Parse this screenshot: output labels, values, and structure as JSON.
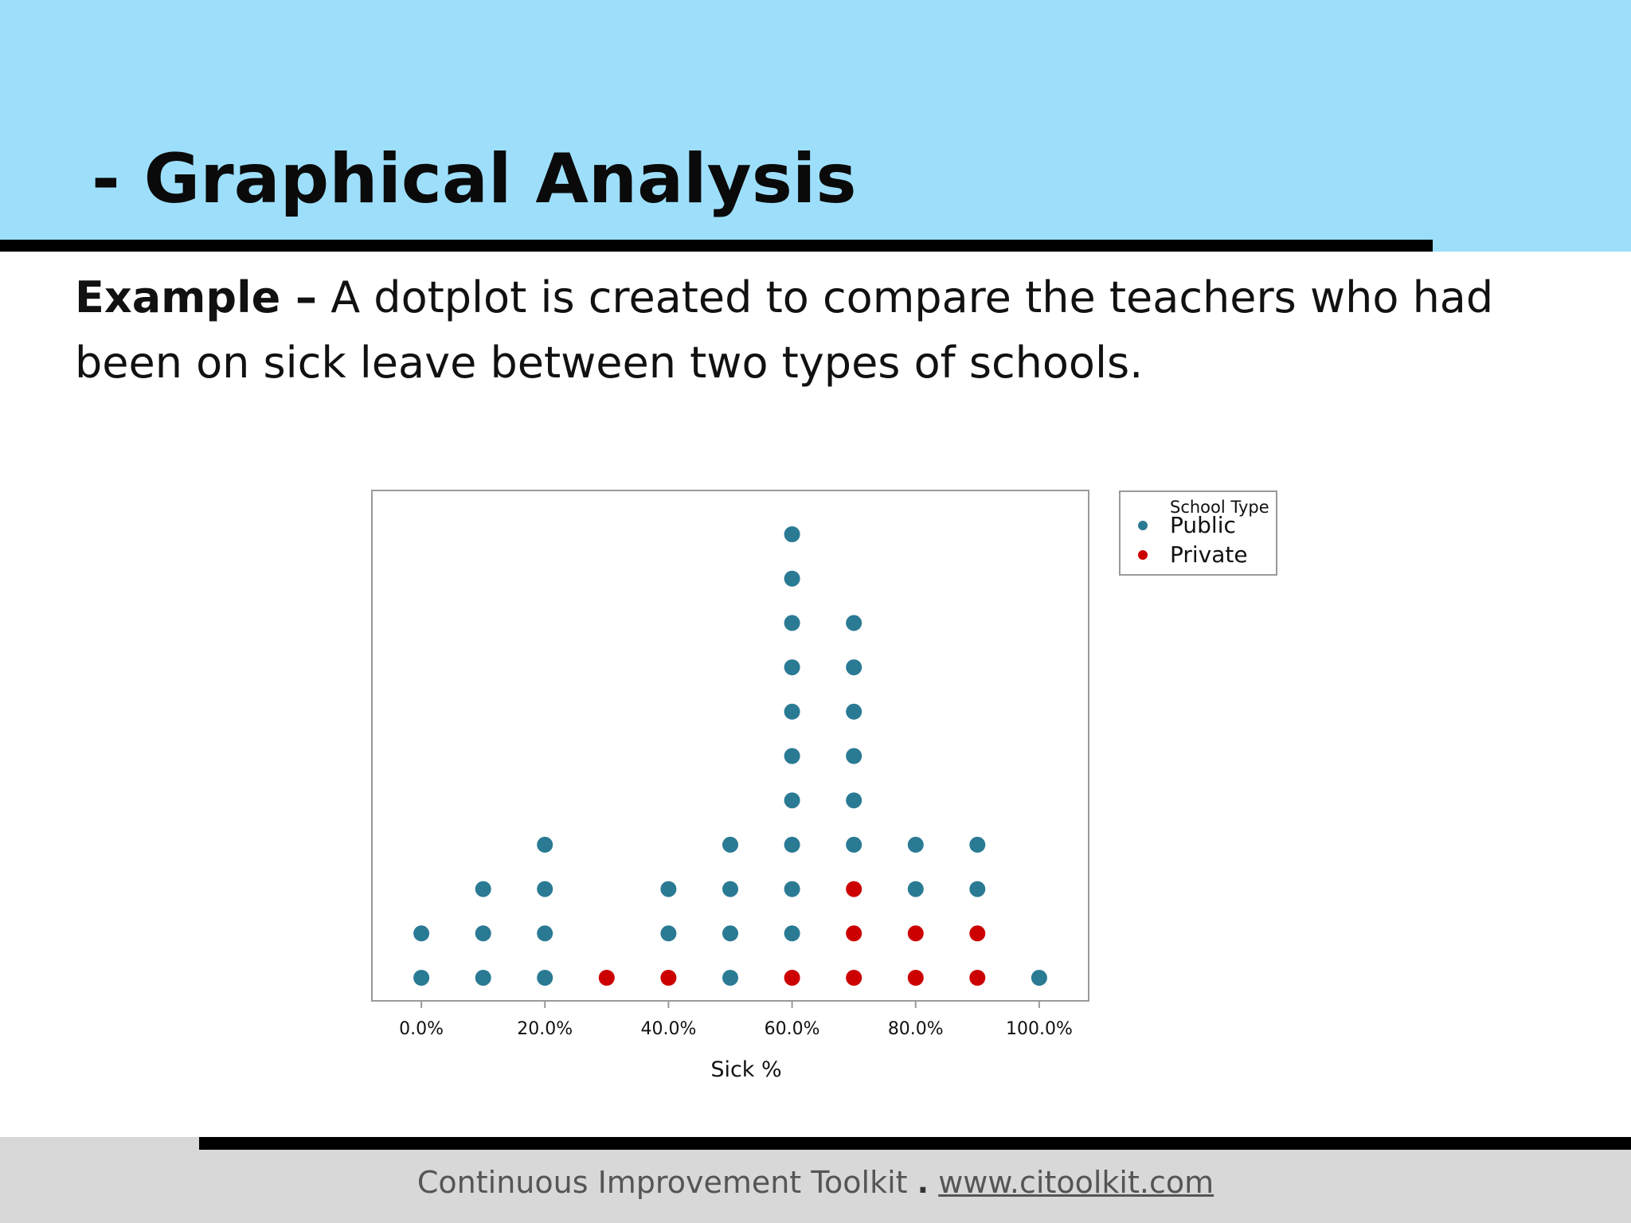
{
  "slide": {
    "title": "- Graphical Analysis",
    "intro_lead": "Example –",
    "intro_text": "A dotplot is created to compare the teachers who had been on sick leave between two types of schools."
  },
  "footer": {
    "org": "Continuous Improvement Toolkit",
    "separator": ".",
    "url": "www.citoolkit.com"
  },
  "chart_data": {
    "type": "scatter",
    "subtype": "dotplot",
    "xlabel": "Sick %",
    "x_ticks": [
      "0.0%",
      "20.0%",
      "40.0%",
      "60.0%",
      "80.0%",
      "100.0%"
    ],
    "x_tick_values": [
      0,
      20,
      40,
      60,
      80,
      100
    ],
    "xlim": [
      -8,
      108
    ],
    "grid": false,
    "legend": {
      "title": "School Type",
      "position": "right"
    },
    "series": [
      {
        "name": "Public",
        "color": "#2a7a94",
        "x": [
          0,
          10,
          20,
          40,
          50,
          60,
          70,
          80,
          90,
          100
        ],
        "counts": [
          2,
          3,
          4,
          2,
          4,
          10,
          6,
          2,
          2,
          1
        ]
      },
      {
        "name": "Private",
        "color": "#cc0000",
        "x": [
          30,
          40,
          60,
          70,
          80,
          90
        ],
        "counts": [
          1,
          1,
          1,
          3,
          2,
          2
        ]
      }
    ],
    "stacking_order": [
      "Private",
      "Public"
    ]
  }
}
